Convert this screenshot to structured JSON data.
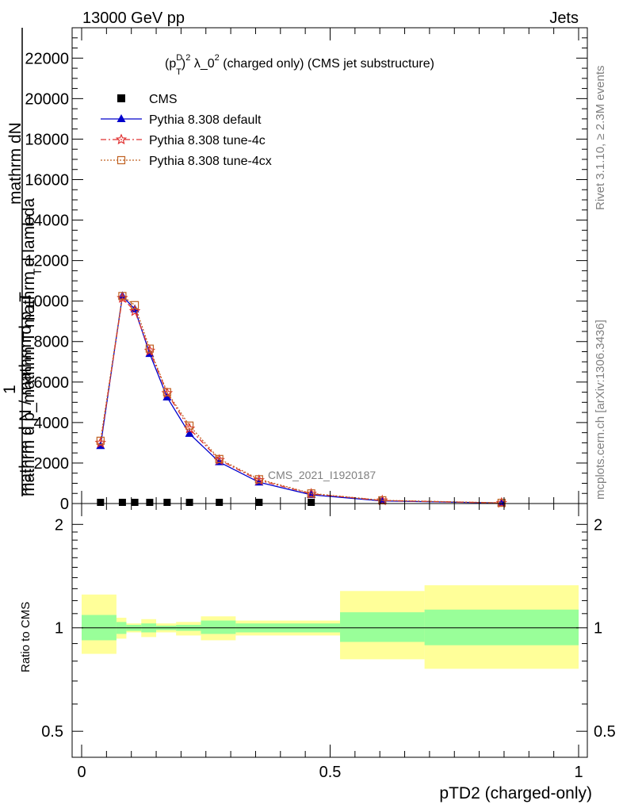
{
  "header": {
    "energy_label": "13000 GeV pp",
    "process_label": "Jets"
  },
  "side_labels": {
    "rivet": "Rivet 3.1.10, ≥ 2.3M events",
    "mcplots": "mcplots.cern.ch [arXiv:1306.3436]"
  },
  "chart_data": [
    {
      "type": "line",
      "panel": "main",
      "title_parts": {
        "p": "(p",
        "sup_d": "D",
        "sub_t": "T",
        "close": ")",
        "sup_2": "2",
        "rest": " λ_0",
        "sup_2b": "2",
        "tail": " (charged only) (CMS jet substructure)"
      },
      "ylabel_top": "mathrm dN",
      "ylabel_mid": "mathrm d p_mathrm T mathrm d lambda",
      "ylabel_one": "1",
      "ylabel_bottom": "mathrm d N / mathrm d p_T",
      "ylabel_sub": "T",
      "watermark": "CMS_2021_I1920187",
      "ylim": [
        0,
        23500
      ],
      "xlim": [
        0,
        1
      ],
      "ytick_labels": [
        "0",
        "2000",
        "4000",
        "6000",
        "8000",
        "10000",
        "12000",
        "14000",
        "16000",
        "18000",
        "20000",
        "22000"
      ],
      "yticks": [
        0,
        2000,
        4000,
        6000,
        8000,
        10000,
        12000,
        14000,
        16000,
        18000,
        20000,
        22000
      ],
      "legend_position": "top-left",
      "series": [
        {
          "name": "CMS",
          "style": "data",
          "color": "#000000",
          "x": [
            0.038,
            0.082,
            0.107,
            0.137,
            0.172,
            0.217,
            0.277,
            0.357,
            0.462
          ],
          "y": [
            0,
            0,
            0,
            0,
            0,
            0,
            0,
            0,
            0
          ]
        },
        {
          "name": "Pythia 8.308 default",
          "style": "solid-triangle",
          "color": "#0000cc",
          "x": [
            0.038,
            0.082,
            0.107,
            0.137,
            0.172,
            0.217,
            0.277,
            0.357,
            0.462,
            0.605,
            0.845
          ],
          "y": [
            2850,
            10250,
            9600,
            7400,
            5250,
            3450,
            2050,
            1050,
            430,
            130,
            25
          ]
        },
        {
          "name": "Pythia 8.308 tune-4c",
          "style": "dashdot-star",
          "color": "#e03030",
          "x": [
            0.038,
            0.082,
            0.107,
            0.137,
            0.172,
            0.217,
            0.277,
            0.357,
            0.462,
            0.605,
            0.845
          ],
          "y": [
            3000,
            10150,
            9500,
            7550,
            5450,
            3700,
            2150,
            1150,
            480,
            150,
            30
          ]
        },
        {
          "name": "Pythia 8.308 tune-4cx",
          "style": "dotted-square",
          "color": "#c06020",
          "x": [
            0.038,
            0.082,
            0.107,
            0.137,
            0.172,
            0.217,
            0.277,
            0.357,
            0.462,
            0.605,
            0.845
          ],
          "y": [
            3100,
            10250,
            9800,
            7650,
            5500,
            3850,
            2200,
            1200,
            500,
            160,
            35
          ]
        }
      ]
    },
    {
      "type": "area",
      "panel": "ratio",
      "ylabel": "Ratio to CMS",
      "xlabel": "pTD2 (charged-only)",
      "ylim": [
        0.42,
        2.3
      ],
      "xlim": [
        0,
        1
      ],
      "ytick_labels": [
        "0.5",
        "1",
        "2"
      ],
      "yticks": [
        0.5,
        1,
        2
      ],
      "xtick_labels": [
        "0",
        "0.5",
        "1"
      ],
      "xticks": [
        0,
        0.5,
        1
      ],
      "reference_line": 1,
      "bands": [
        {
          "name": "total uncertainty",
          "color": "#ffff99",
          "bins": [
            [
              0.0,
              0.07,
              0.84,
              1.25
            ],
            [
              0.07,
              0.09,
              0.93,
              1.07
            ],
            [
              0.09,
              0.12,
              0.97,
              1.03
            ],
            [
              0.12,
              0.15,
              0.94,
              1.06
            ],
            [
              0.15,
              0.19,
              0.97,
              1.03
            ],
            [
              0.19,
              0.24,
              0.95,
              1.04
            ],
            [
              0.24,
              0.31,
              0.92,
              1.08
            ],
            [
              0.31,
              0.52,
              0.95,
              1.05
            ],
            [
              0.52,
              0.69,
              0.81,
              1.28
            ],
            [
              0.69,
              1.0,
              0.76,
              1.33
            ]
          ]
        },
        {
          "name": "stat uncertainty",
          "color": "#99ff99",
          "bins": [
            [
              0.0,
              0.07,
              0.92,
              1.09
            ],
            [
              0.07,
              0.09,
              0.96,
              1.04
            ],
            [
              0.09,
              0.12,
              0.98,
              1.02
            ],
            [
              0.12,
              0.15,
              0.97,
              1.03
            ],
            [
              0.15,
              0.19,
              0.985,
              1.015
            ],
            [
              0.19,
              0.24,
              0.98,
              1.02
            ],
            [
              0.24,
              0.31,
              0.96,
              1.05
            ],
            [
              0.31,
              0.52,
              0.97,
              1.03
            ],
            [
              0.52,
              0.69,
              0.91,
              1.11
            ],
            [
              0.69,
              1.0,
              0.89,
              1.13
            ]
          ]
        }
      ]
    }
  ]
}
